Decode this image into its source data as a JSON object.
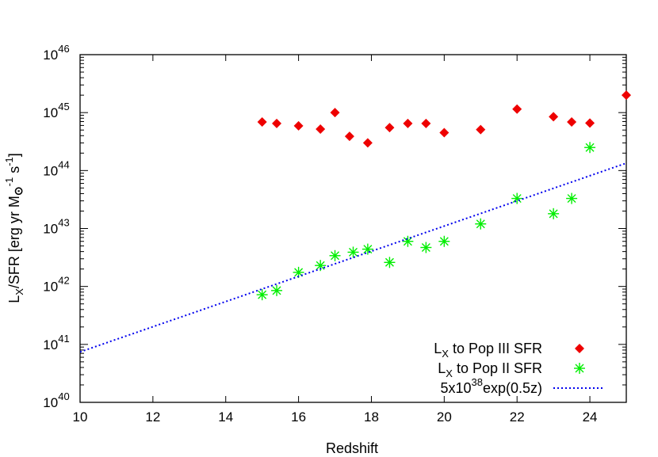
{
  "chart_data": {
    "type": "scatter",
    "xlabel": "Redshift",
    "ylabel": {
      "parts": [
        "L",
        "X",
        "/SFR [erg yr M",
        "⊙",
        "-1",
        " s",
        "-1",
        "]"
      ]
    },
    "xlim": [
      10,
      25
    ],
    "ylim": [
      1e+40,
      1e+46
    ],
    "yscale": "log",
    "x_ticks": [
      10,
      12,
      14,
      16,
      18,
      20,
      22,
      24
    ],
    "y_ticks": [
      {
        "value": 1e+40,
        "base": "10",
        "exp": "40"
      },
      {
        "value": 1e+41,
        "base": "10",
        "exp": "41"
      },
      {
        "value": 1e+42,
        "base": "10",
        "exp": "42"
      },
      {
        "value": 1e+43,
        "base": "10",
        "exp": "43"
      },
      {
        "value": 1e+44,
        "base": "10",
        "exp": "44"
      },
      {
        "value": 1e+45,
        "base": "10",
        "exp": "45"
      },
      {
        "value": 1e+46,
        "base": "10",
        "exp": "46"
      }
    ],
    "grid": false,
    "legend_position": "bottom-right",
    "series": [
      {
        "legend": {
          "main": "L",
          "sub": "X",
          "rest": " to Pop III SFR"
        },
        "marker": "diamond",
        "color": "#ee0000",
        "points": [
          [
            15.0,
            6.9e+44
          ],
          [
            15.4,
            6.5e+44
          ],
          [
            16.0,
            5.9e+44
          ],
          [
            16.6,
            5.2e+44
          ],
          [
            17.0,
            1e+45
          ],
          [
            17.4,
            3.9e+44
          ],
          [
            17.9,
            3e+44
          ],
          [
            18.5,
            5.5e+44
          ],
          [
            19.0,
            6.5e+44
          ],
          [
            19.5,
            6.5e+44
          ],
          [
            20.0,
            4.5e+44
          ],
          [
            21.0,
            5.1e+44
          ],
          [
            22.0,
            1.15e+45
          ],
          [
            23.0,
            8.5e+44
          ],
          [
            23.5,
            6.9e+44
          ],
          [
            24.0,
            6.6e+44
          ],
          [
            25.0,
            2e+45
          ]
        ]
      },
      {
        "legend": {
          "main": "L",
          "sub": "X",
          "rest": " to Pop II SFR"
        },
        "marker": "asterisk",
        "color": "#00ee00",
        "points": [
          [
            15.0,
            7.2e+41
          ],
          [
            15.4,
            8.5e+41
          ],
          [
            16.0,
            1.75e+42
          ],
          [
            16.6,
            2.3e+42
          ],
          [
            17.0,
            3.4e+42
          ],
          [
            17.5,
            3.9e+42
          ],
          [
            17.9,
            4.4e+42
          ],
          [
            18.5,
            2.6e+42
          ],
          [
            19.0,
            6e+42
          ],
          [
            19.5,
            4.7e+42
          ],
          [
            20.0,
            6e+42
          ],
          [
            21.0,
            1.2e+43
          ],
          [
            22.0,
            3.3e+43
          ],
          [
            23.0,
            1.8e+43
          ],
          [
            23.5,
            3.3e+43
          ],
          [
            24.0,
            2.5e+44
          ]
        ]
      },
      {
        "legend": {
          "main": "5x10",
          "sup": "38",
          "rest": "exp(0.5z)"
        },
        "marker": "dotted-line",
        "color": "#0000ee",
        "formula": {
          "a": 5e+38,
          "b": 0.5
        }
      }
    ]
  }
}
